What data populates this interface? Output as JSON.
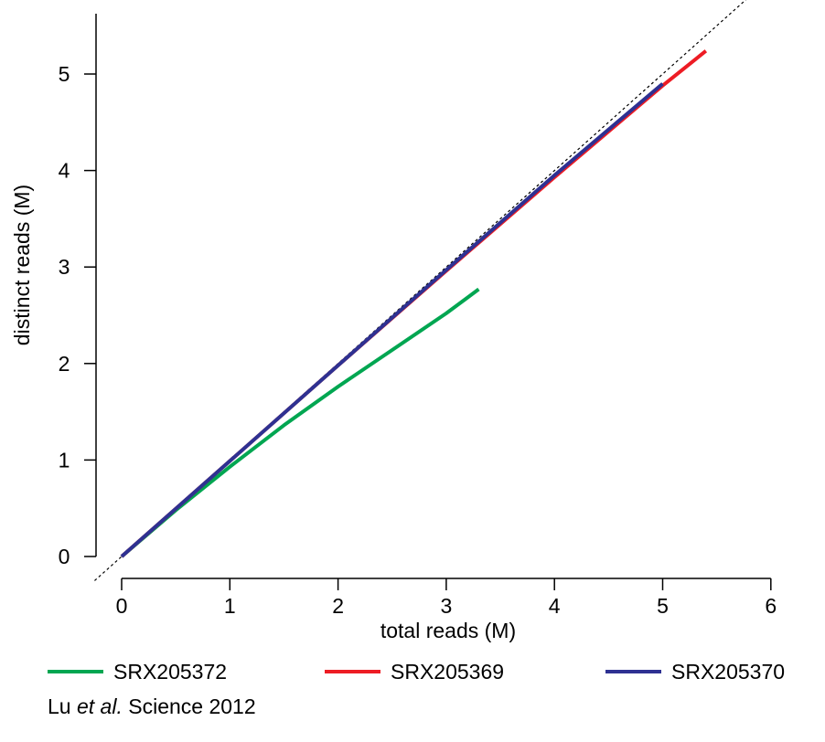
{
  "chart_data": {
    "type": "line",
    "title": "",
    "xlabel": "total reads (M)",
    "ylabel": "distinct reads (M)",
    "xlim": [
      0,
      6
    ],
    "ylim": [
      0,
      5.5
    ],
    "xticks": [
      "0",
      "1",
      "2",
      "3",
      "4",
      "5",
      "6"
    ],
    "yticks": [
      "0",
      "1",
      "2",
      "3",
      "4",
      "5"
    ],
    "grid": false,
    "legend_position": "bottom",
    "reference_line": {
      "style": "dashed",
      "slope": 1,
      "intercept": 0
    },
    "series": [
      {
        "name": "SRX205372",
        "color": "#00a651",
        "x": [
          0,
          0.5,
          1.0,
          1.5,
          2.0,
          2.5,
          3.0,
          3.3
        ],
        "y": [
          0,
          0.48,
          0.93,
          1.36,
          1.76,
          2.14,
          2.52,
          2.77
        ]
      },
      {
        "name": "SRX205369",
        "color": "#ed1c24",
        "x": [
          0,
          1,
          2,
          3,
          4,
          5,
          5.4
        ],
        "y": [
          0,
          0.99,
          1.98,
          2.96,
          3.93,
          4.88,
          5.24
        ]
      },
      {
        "name": "SRX205370",
        "color": "#2e3192",
        "x": [
          0,
          1,
          2,
          3,
          4,
          5
        ],
        "y": [
          0,
          0.99,
          1.98,
          2.97,
          3.95,
          4.9
        ]
      }
    ]
  },
  "caption": {
    "prefix": "Lu ",
    "italic": "et al.",
    "suffix": " Science 2012"
  }
}
